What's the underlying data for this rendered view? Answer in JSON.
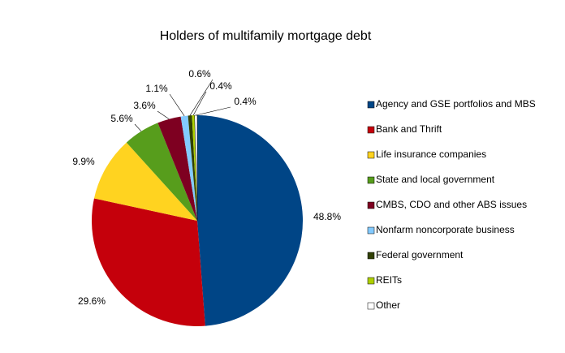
{
  "chart_data": {
    "type": "pie",
    "title": "Holders of multifamily mortgage debt",
    "categories": [
      "Agency and GSE portfolios and MBS",
      "Bank and Thrift",
      "Life insurance companies",
      "State and local government",
      "CMBS, CDO and other ABS issues",
      "Nonfarm noncorporate business",
      "Federal government",
      "REITs",
      "Other"
    ],
    "values": [
      48.8,
      29.6,
      9.9,
      5.6,
      3.6,
      1.1,
      0.6,
      0.4,
      0.4
    ],
    "value_labels": [
      "48.8%",
      "29.6%",
      "9.9%",
      "5.6%",
      "3.6%",
      "1.1%",
      "0.6%",
      "0.4%",
      "0.4%"
    ],
    "colors": [
      "#004586",
      "#c5000b",
      "#ffd320",
      "#579d1c",
      "#7e0021",
      "#83caff",
      "#314004",
      "#aecf00",
      "#ffffff"
    ],
    "legend": "right"
  }
}
